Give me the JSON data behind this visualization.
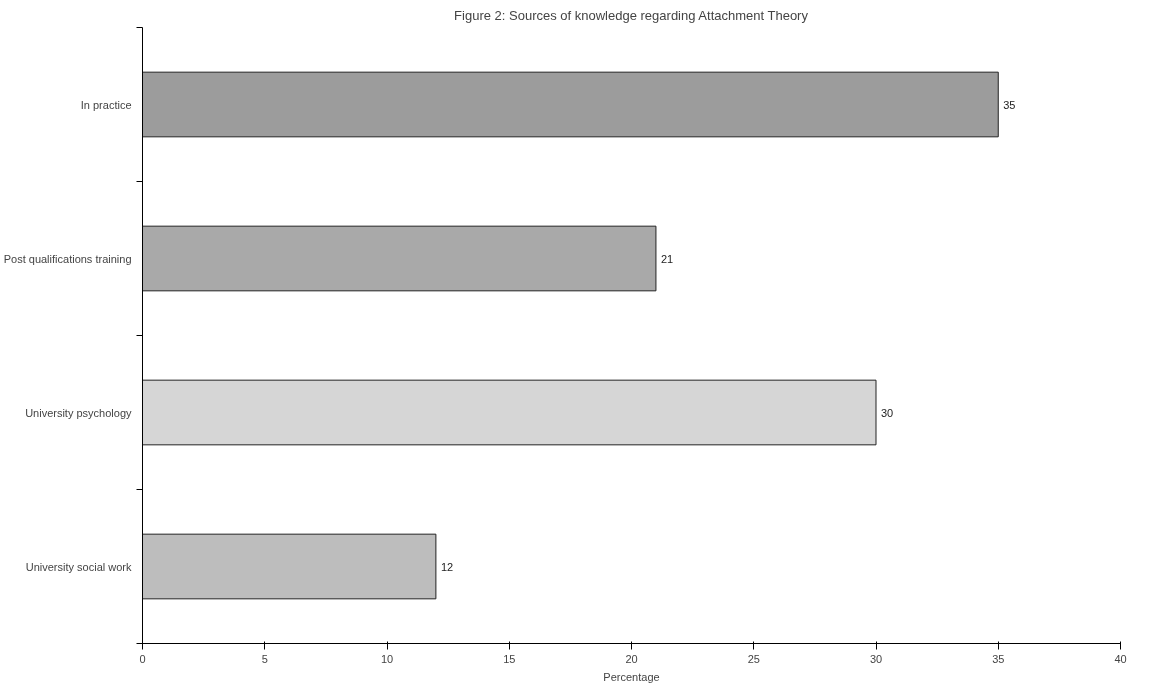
{
  "chart_data": {
    "type": "bar",
    "orientation": "horizontal",
    "title": "Figure 2: Sources of knowledge regarding Attachment Theory",
    "xlabel": "Percentage",
    "categories": [
      "In practice",
      "Post qualifications training",
      "University psychology",
      "University social work"
    ],
    "values": [
      35,
      21,
      30,
      12
    ],
    "colors": [
      "#9c9c9c",
      "#a9a9a9",
      "#d6d6d6",
      "#bdbdbd"
    ],
    "xlim": [
      0,
      40
    ],
    "xticks": [
      0,
      5,
      10,
      15,
      20,
      25,
      30,
      35,
      40
    ],
    "data_labels": true,
    "grid": false
  }
}
